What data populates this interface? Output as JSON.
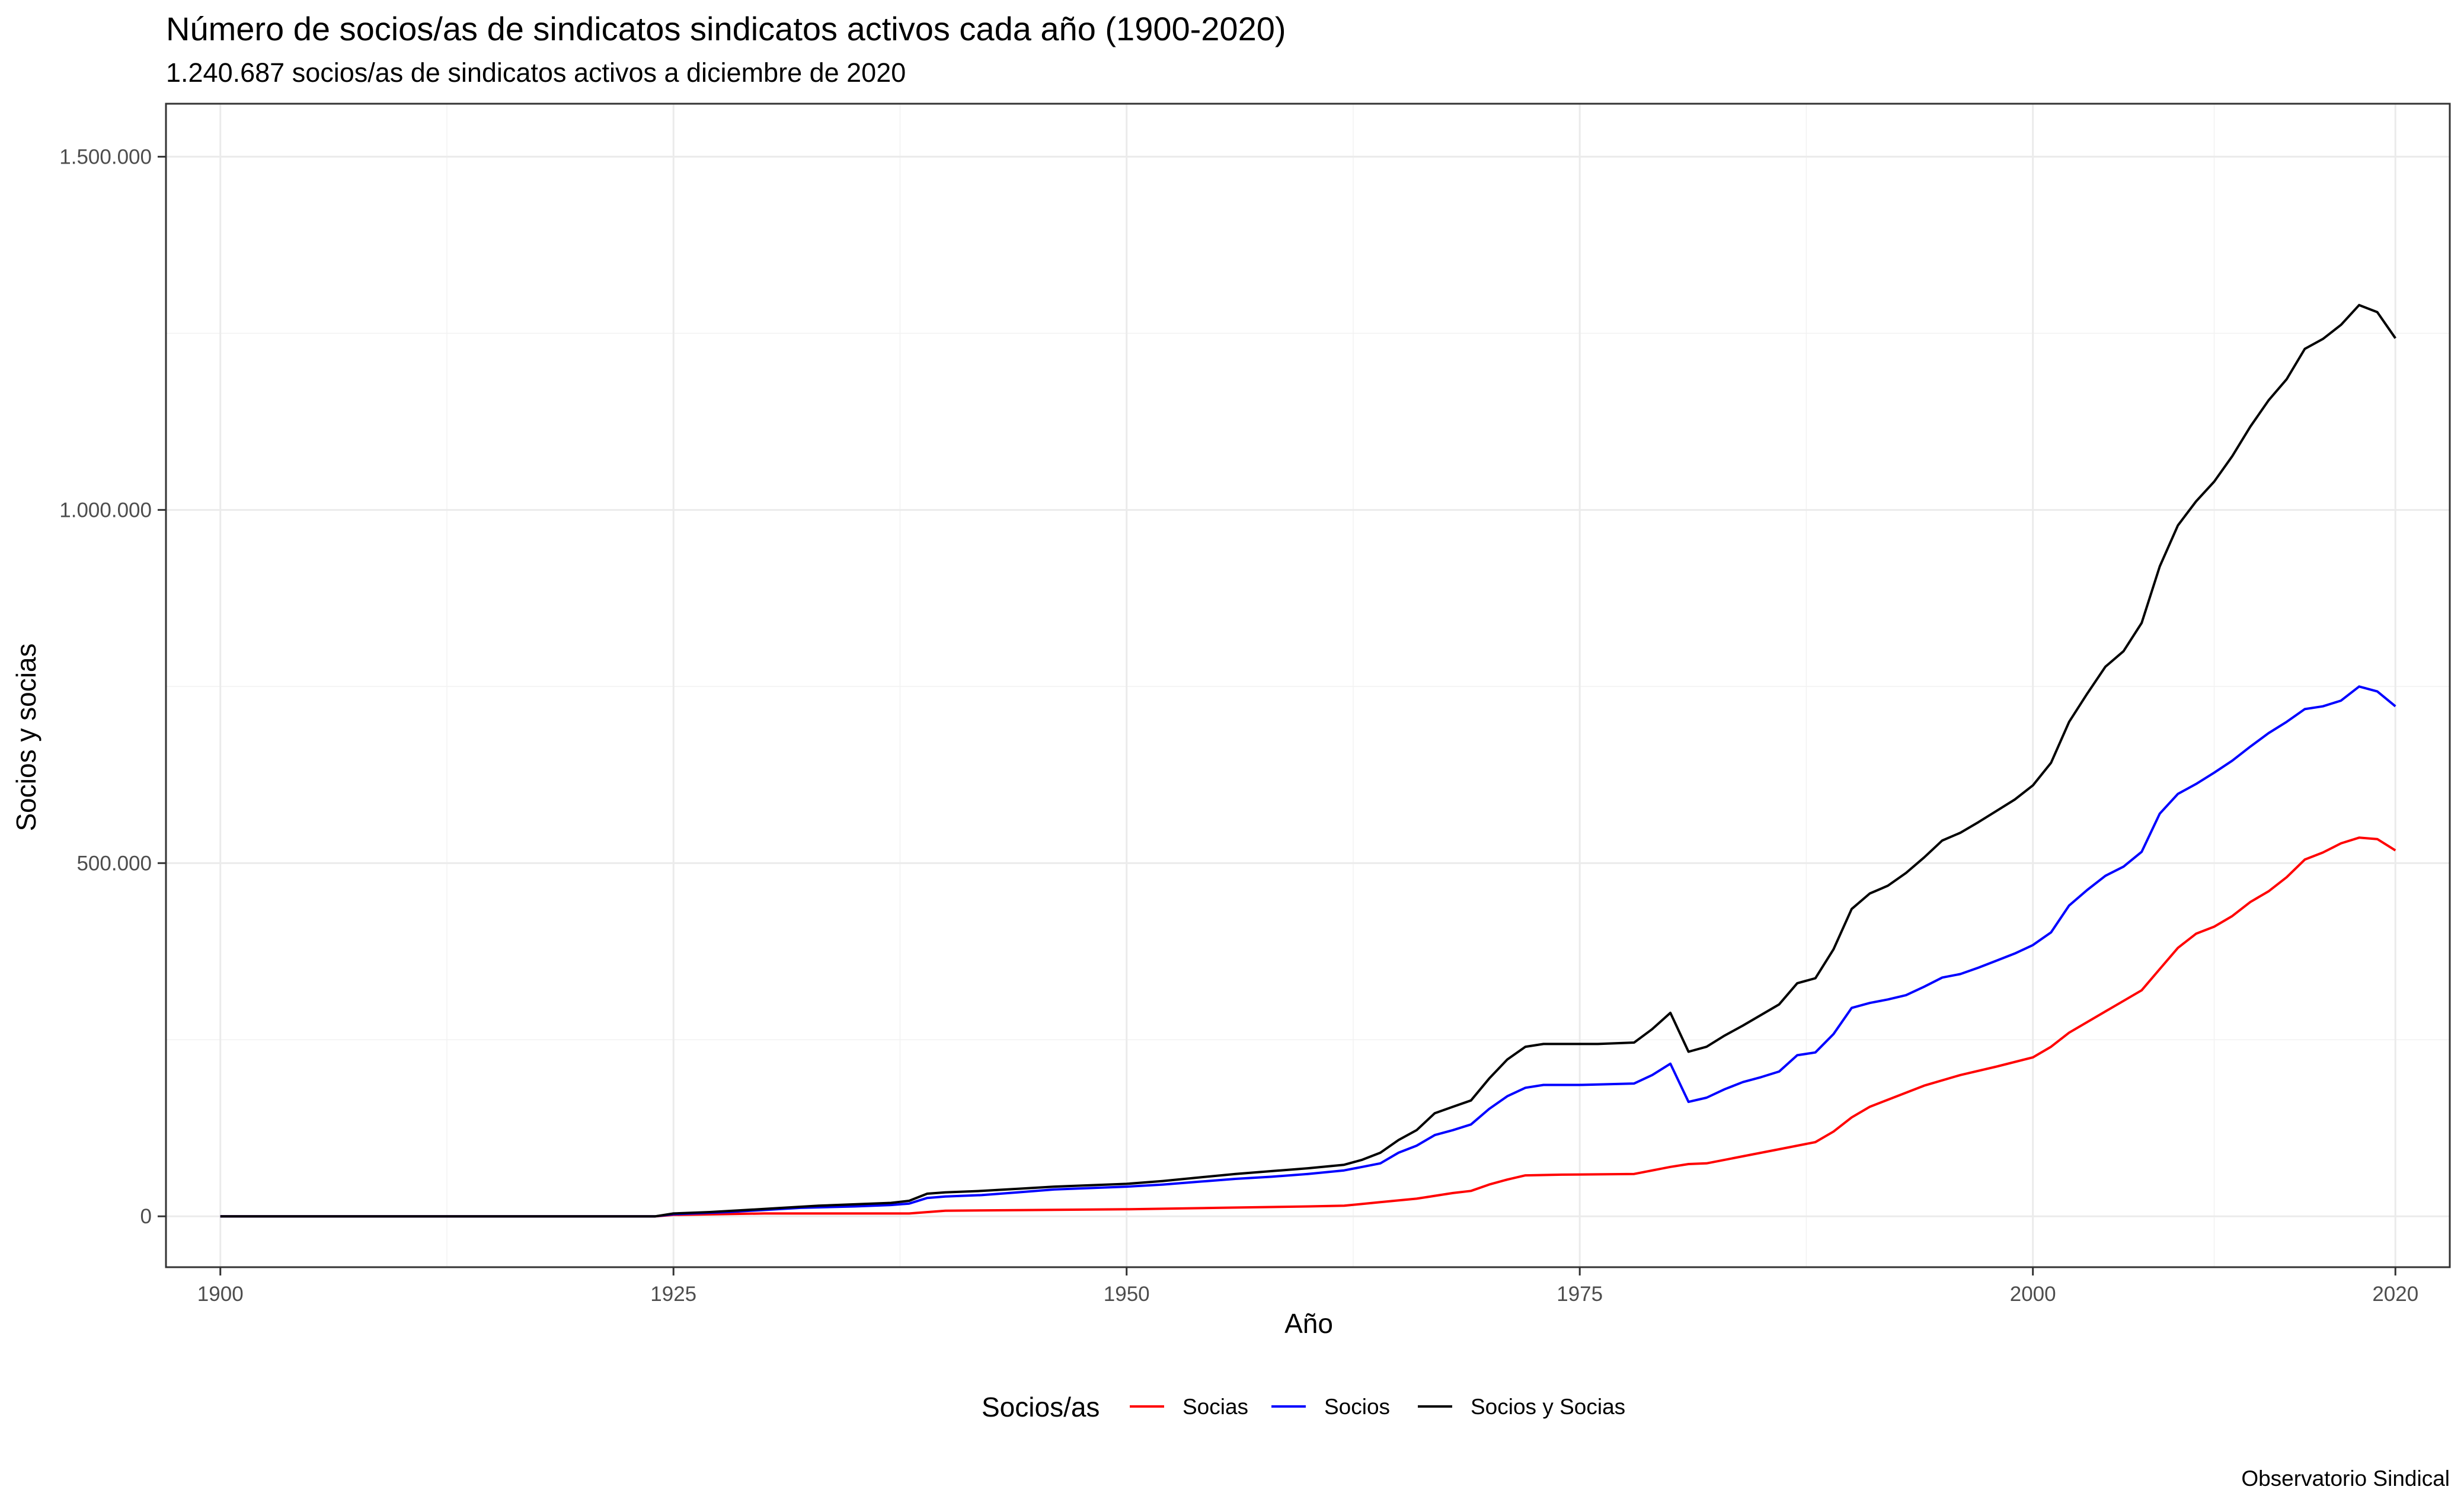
{
  "chart_data": {
    "type": "line",
    "title": "Número de socios/as de sindicatos sindicatos activos cada año (1900-2020)",
    "subtitle": "1.240.687 socios/as de sindicatos activos a diciembre de 2020",
    "xlabel": "Año",
    "ylabel": "Socios y socias",
    "caption": "Observatorio Sindical",
    "xlim": [
      1897,
      2023
    ],
    "ylim": [
      -72000,
      1575000
    ],
    "x_ticks": [
      1900,
      1925,
      1950,
      1975,
      2000,
      2020
    ],
    "x_tick_labels": [
      "1900",
      "1925",
      "1950",
      "1975",
      "2000",
      "2020"
    ],
    "x_minor_ticks": [
      1912.5,
      1937.5,
      1962.5,
      1987.5,
      2010
    ],
    "y_ticks": [
      0,
      500000,
      1000000,
      1500000
    ],
    "y_tick_labels": [
      "0",
      "500.000",
      "1.000.000",
      "1.500.000"
    ],
    "y_minor_ticks": [
      250000,
      750000,
      1250000
    ],
    "grid": true,
    "legend": {
      "title": "Socios/as",
      "position": "bottom"
    },
    "series": [
      {
        "name": "Socias",
        "color": "#ff0000",
        "points": [
          [
            1900,
            0
          ],
          [
            1924,
            0
          ],
          [
            1925,
            2000
          ],
          [
            1930,
            4000
          ],
          [
            1935,
            4000
          ],
          [
            1938,
            4000
          ],
          [
            1940,
            8000
          ],
          [
            1945,
            9000
          ],
          [
            1950,
            10000
          ],
          [
            1955,
            12000
          ],
          [
            1960,
            14000
          ],
          [
            1962,
            15000
          ],
          [
            1964,
            20000
          ],
          [
            1966,
            25000
          ],
          [
            1968,
            33000
          ],
          [
            1969,
            36000
          ],
          [
            1970,
            45000
          ],
          [
            1971,
            52000
          ],
          [
            1972,
            58000
          ],
          [
            1974,
            59000
          ],
          [
            1978,
            60000
          ],
          [
            1980,
            70000
          ],
          [
            1981,
            74000
          ],
          [
            1982,
            75000
          ],
          [
            1984,
            85000
          ],
          [
            1986,
            95000
          ],
          [
            1988,
            105000
          ],
          [
            1989,
            120000
          ],
          [
            1990,
            140000
          ],
          [
            1991,
            155000
          ],
          [
            1992,
            165000
          ],
          [
            1994,
            185000
          ],
          [
            1996,
            200000
          ],
          [
            1998,
            212000
          ],
          [
            2000,
            225000
          ],
          [
            2001,
            240000
          ],
          [
            2002,
            260000
          ],
          [
            2004,
            290000
          ],
          [
            2005,
            305000
          ],
          [
            2006,
            320000
          ],
          [
            2007,
            350000
          ],
          [
            2008,
            380000
          ],
          [
            2009,
            400000
          ],
          [
            2010,
            410000
          ],
          [
            2011,
            425000
          ],
          [
            2012,
            445000
          ],
          [
            2013,
            460000
          ],
          [
            2014,
            480000
          ],
          [
            2015,
            505000
          ],
          [
            2016,
            515000
          ],
          [
            2017,
            528000
          ],
          [
            2018,
            536000
          ],
          [
            2019,
            534000
          ],
          [
            2020,
            518000
          ]
        ]
      },
      {
        "name": "Socios",
        "color": "#0000ff",
        "points": [
          [
            1900,
            0
          ],
          [
            1924,
            0
          ],
          [
            1925,
            3000
          ],
          [
            1928,
            6000
          ],
          [
            1930,
            9000
          ],
          [
            1932,
            12000
          ],
          [
            1935,
            14000
          ],
          [
            1937,
            16000
          ],
          [
            1938,
            18000
          ],
          [
            1939,
            26000
          ],
          [
            1940,
            28000
          ],
          [
            1942,
            30000
          ],
          [
            1944,
            34000
          ],
          [
            1946,
            38000
          ],
          [
            1948,
            40000
          ],
          [
            1950,
            42000
          ],
          [
            1952,
            45000
          ],
          [
            1954,
            49000
          ],
          [
            1956,
            53000
          ],
          [
            1958,
            56000
          ],
          [
            1960,
            60000
          ],
          [
            1962,
            65000
          ],
          [
            1963,
            70000
          ],
          [
            1964,
            75000
          ],
          [
            1965,
            90000
          ],
          [
            1966,
            100000
          ],
          [
            1967,
            115000
          ],
          [
            1968,
            122000
          ],
          [
            1969,
            130000
          ],
          [
            1970,
            152000
          ],
          [
            1971,
            170000
          ],
          [
            1972,
            182000
          ],
          [
            1973,
            186000
          ],
          [
            1975,
            186000
          ],
          [
            1978,
            188000
          ],
          [
            1979,
            200000
          ],
          [
            1980,
            216000
          ],
          [
            1981,
            162000
          ],
          [
            1982,
            168000
          ],
          [
            1983,
            180000
          ],
          [
            1984,
            190000
          ],
          [
            1985,
            197000
          ],
          [
            1986,
            205000
          ],
          [
            1987,
            228000
          ],
          [
            1988,
            232000
          ],
          [
            1989,
            258000
          ],
          [
            1990,
            295000
          ],
          [
            1991,
            302000
          ],
          [
            1992,
            307000
          ],
          [
            1993,
            313000
          ],
          [
            1994,
            325000
          ],
          [
            1995,
            338000
          ],
          [
            1996,
            343000
          ],
          [
            1997,
            352000
          ],
          [
            1998,
            362000
          ],
          [
            1999,
            372000
          ],
          [
            2000,
            384000
          ],
          [
            2001,
            402000
          ],
          [
            2002,
            440000
          ],
          [
            2003,
            462000
          ],
          [
            2004,
            482000
          ],
          [
            2005,
            495000
          ],
          [
            2006,
            516000
          ],
          [
            2007,
            570000
          ],
          [
            2008,
            598000
          ],
          [
            2009,
            612000
          ],
          [
            2010,
            628000
          ],
          [
            2011,
            645000
          ],
          [
            2012,
            665000
          ],
          [
            2013,
            684000
          ],
          [
            2014,
            700000
          ],
          [
            2015,
            718000
          ],
          [
            2016,
            722000
          ],
          [
            2017,
            730000
          ],
          [
            2018,
            750000
          ],
          [
            2019,
            743000
          ],
          [
            2020,
            722000
          ]
        ]
      },
      {
        "name": "Socios y Socias",
        "color": "#000000",
        "points": [
          [
            1900,
            0
          ],
          [
            1924,
            0
          ],
          [
            1925,
            4000
          ],
          [
            1927,
            6000
          ],
          [
            1929,
            9000
          ],
          [
            1931,
            12000
          ],
          [
            1933,
            15000
          ],
          [
            1935,
            17000
          ],
          [
            1937,
            19000
          ],
          [
            1938,
            22000
          ],
          [
            1939,
            32000
          ],
          [
            1940,
            34000
          ],
          [
            1942,
            36000
          ],
          [
            1944,
            39000
          ],
          [
            1946,
            42000
          ],
          [
            1948,
            44000
          ],
          [
            1950,
            46000
          ],
          [
            1952,
            50000
          ],
          [
            1954,
            55000
          ],
          [
            1956,
            60000
          ],
          [
            1958,
            64000
          ],
          [
            1960,
            68000
          ],
          [
            1962,
            73000
          ],
          [
            1963,
            80000
          ],
          [
            1964,
            90000
          ],
          [
            1965,
            108000
          ],
          [
            1966,
            122000
          ],
          [
            1967,
            146000
          ],
          [
            1968,
            155000
          ],
          [
            1969,
            164000
          ],
          [
            1970,
            195000
          ],
          [
            1971,
            222000
          ],
          [
            1972,
            240000
          ],
          [
            1973,
            244000
          ],
          [
            1976,
            244000
          ],
          [
            1978,
            246000
          ],
          [
            1979,
            265000
          ],
          [
            1980,
            288000
          ],
          [
            1981,
            233000
          ],
          [
            1982,
            240000
          ],
          [
            1983,
            256000
          ],
          [
            1984,
            270000
          ],
          [
            1985,
            285000
          ],
          [
            1986,
            300000
          ],
          [
            1987,
            330000
          ],
          [
            1988,
            337000
          ],
          [
            1989,
            378000
          ],
          [
            1990,
            435000
          ],
          [
            1991,
            457000
          ],
          [
            1992,
            468000
          ],
          [
            1993,
            486000
          ],
          [
            1994,
            508000
          ],
          [
            1995,
            532000
          ],
          [
            1996,
            543000
          ],
          [
            1997,
            558000
          ],
          [
            1998,
            574000
          ],
          [
            1999,
            590000
          ],
          [
            2000,
            610000
          ],
          [
            2001,
            642000
          ],
          [
            2002,
            700000
          ],
          [
            2003,
            740000
          ],
          [
            2004,
            778000
          ],
          [
            2005,
            800000
          ],
          [
            2006,
            840000
          ],
          [
            2007,
            920000
          ],
          [
            2008,
            978000
          ],
          [
            2009,
            1012000
          ],
          [
            2010,
            1040000
          ],
          [
            2011,
            1076000
          ],
          [
            2012,
            1118000
          ],
          [
            2013,
            1155000
          ],
          [
            2014,
            1185000
          ],
          [
            2015,
            1228000
          ],
          [
            2016,
            1242000
          ],
          [
            2017,
            1262000
          ],
          [
            2018,
            1290000
          ],
          [
            2019,
            1280000
          ],
          [
            2020,
            1243000
          ]
        ]
      }
    ]
  }
}
